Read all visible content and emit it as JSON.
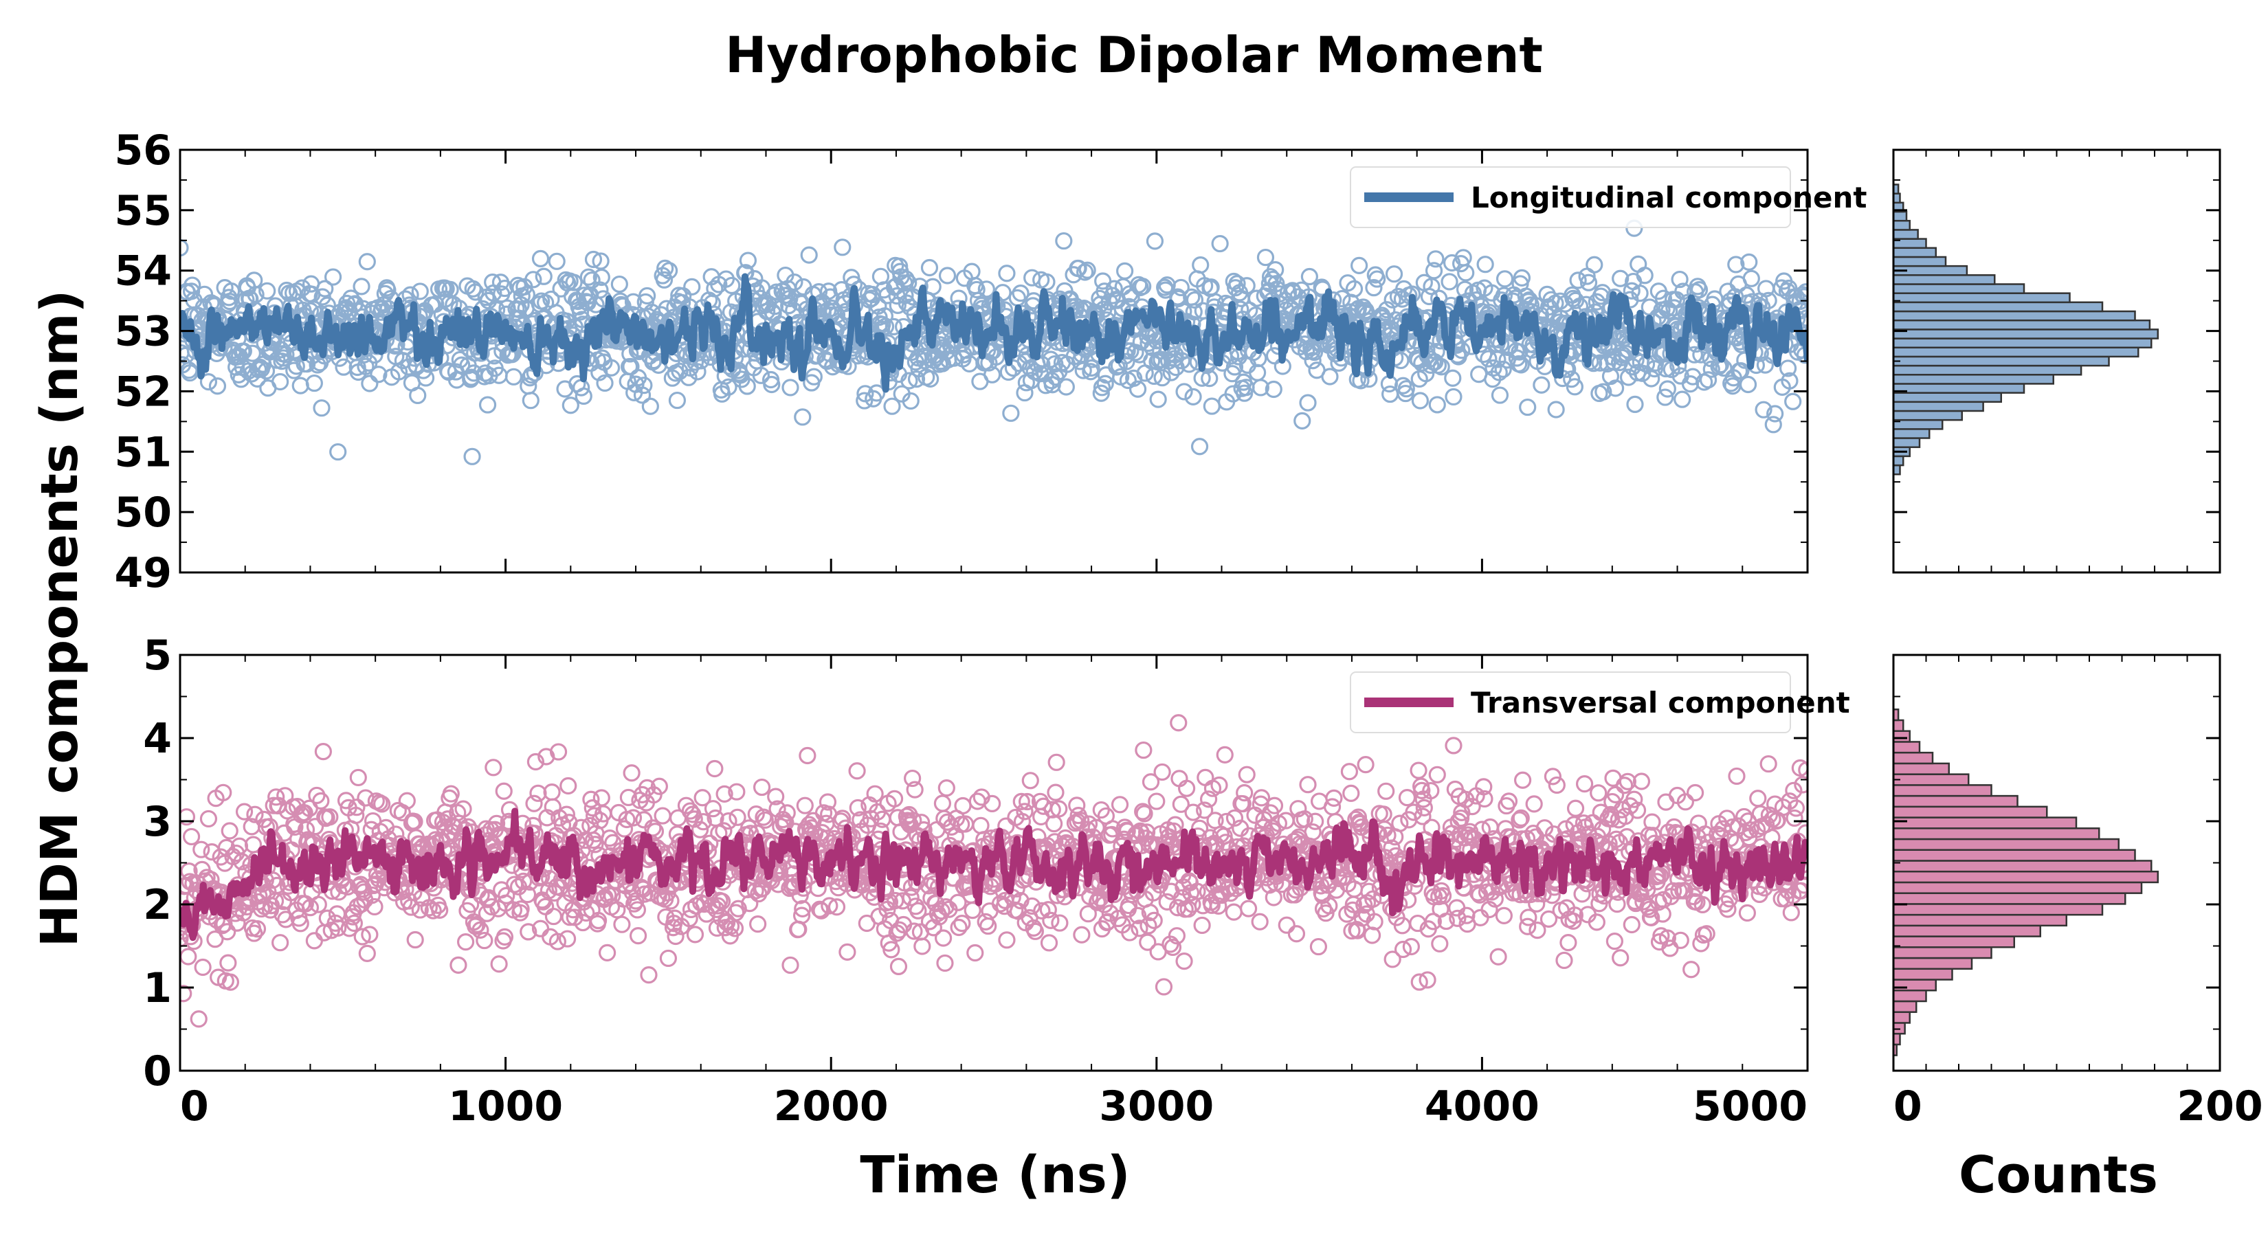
{
  "title": "Hydrophobic Dipolar Moment",
  "colors": {
    "longitudinal": "#4477aa",
    "longitudinal_light": "#8eaed0",
    "transversal": "#aa3377",
    "transversal_light": "#d58db2",
    "hist_long_fill": "#8eaed0",
    "hist_trans_fill": "#d98bb0",
    "hist_edge": "#333333"
  },
  "chart_data": [
    {
      "type": "scatter",
      "panel": "longitudinal-time-series",
      "ylabel": "HDM components (nm)",
      "ylim": [
        49,
        56
      ],
      "yticks": [
        "49",
        "50",
        "51",
        "52",
        "53",
        "54",
        "55",
        "56"
      ],
      "xlim": [
        0,
        5000
      ],
      "legend": {
        "label": "Longitudinal component",
        "placement": "top-right"
      },
      "series": [
        {
          "name": "Longitudinal component",
          "mean": 53.0,
          "spread": 0.8,
          "n_points": 2000
        },
        {
          "name": "Longitudinal component",
          "kind": "running-average",
          "mean": 53.0,
          "amplitude": 0.6,
          "min": 51.8,
          "max": 53.9
        }
      ]
    },
    {
      "type": "scatter",
      "panel": "transversal-time-series",
      "xlabel": "Time (ns)",
      "ylim": [
        0,
        5
      ],
      "yticks": [
        "0",
        "1",
        "2",
        "3",
        "4",
        "5"
      ],
      "xlim": [
        0,
        5000
      ],
      "xticks": [
        "0",
        "1000",
        "2000",
        "3000",
        "4000",
        "5000"
      ],
      "legend": {
        "label": "Transversal component",
        "placement": "top-right"
      },
      "series": [
        {
          "name": "Transversal component",
          "mean": 2.5,
          "spread": 0.75,
          "n_points": 2000,
          "early_mean": 1.9,
          "early_until": 300
        },
        {
          "name": "Transversal component",
          "kind": "running-average",
          "mean": 2.5,
          "amplitude": 0.4,
          "min": 1.3,
          "max": 3.2
        }
      ]
    },
    {
      "type": "bar",
      "orientation": "horizontal",
      "panel": "longitudinal-histogram",
      "xlim": [
        0,
        200
      ],
      "ylim": [
        49,
        56
      ],
      "bins_center": [
        50.7,
        50.85,
        51.0,
        51.15,
        51.3,
        51.45,
        51.6,
        51.75,
        51.9,
        52.05,
        52.2,
        52.35,
        52.5,
        52.65,
        52.8,
        52.95,
        53.1,
        53.25,
        53.4,
        53.55,
        53.7,
        53.85,
        54.0,
        54.15,
        54.3,
        54.45,
        54.6,
        54.75,
        54.9,
        55.05,
        55.2,
        55.35
      ],
      "counts": [
        4,
        6,
        10,
        16,
        22,
        30,
        42,
        55,
        66,
        80,
        98,
        115,
        132,
        150,
        158,
        162,
        157,
        148,
        128,
        108,
        80,
        62,
        45,
        32,
        26,
        20,
        15,
        10,
        8,
        6,
        4,
        3
      ]
    },
    {
      "type": "bar",
      "orientation": "horizontal",
      "panel": "transversal-histogram",
      "xlabel": "Counts",
      "xlim": [
        0,
        200
      ],
      "xticks": [
        "0",
        "200"
      ],
      "ylim": [
        0,
        5
      ],
      "bins_center": [
        0.25,
        0.38,
        0.51,
        0.64,
        0.77,
        0.9,
        1.03,
        1.16,
        1.29,
        1.42,
        1.55,
        1.68,
        1.81,
        1.94,
        2.07,
        2.2,
        2.33,
        2.46,
        2.59,
        2.72,
        2.85,
        2.98,
        3.11,
        3.24,
        3.37,
        3.5,
        3.63,
        3.76,
        3.89,
        4.02,
        4.15,
        4.28
      ],
      "counts": [
        2,
        4,
        7,
        10,
        14,
        20,
        26,
        36,
        48,
        60,
        74,
        90,
        106,
        128,
        142,
        152,
        162,
        158,
        148,
        138,
        126,
        112,
        94,
        76,
        60,
        46,
        34,
        24,
        16,
        10,
        6,
        3
      ]
    }
  ]
}
